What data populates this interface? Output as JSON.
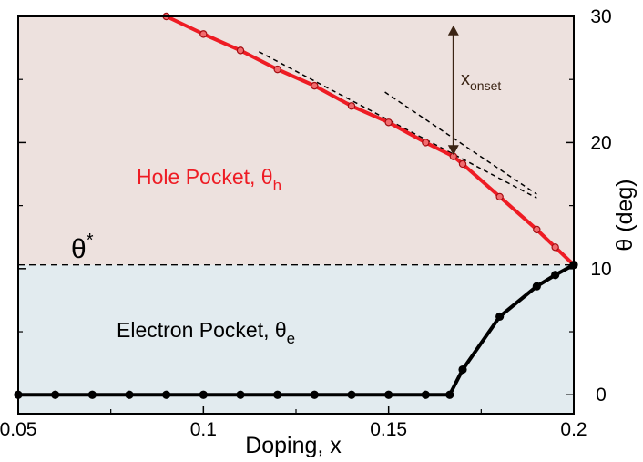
{
  "chart_data": {
    "type": "line",
    "xlabel": "Doping, x",
    "ylabel": "θ (deg)",
    "xlim": [
      0.05,
      0.2
    ],
    "ylim": [
      -1.5,
      30
    ],
    "x_ticks": [
      0.05,
      0.1,
      0.15,
      0.2
    ],
    "x_tick_labels": [
      "0.05",
      "0.1",
      "0.15",
      "0.2"
    ],
    "y_ticks": [
      0,
      10,
      20,
      30
    ],
    "y_tick_labels": [
      "0",
      "10",
      "20",
      "30"
    ],
    "y_axis_side": "right",
    "grid": false,
    "series": [
      {
        "id": "hole",
        "color": "#ee1c24",
        "points": [
          [
            0.09,
            30.0
          ],
          [
            0.1,
            28.6
          ],
          [
            0.11,
            27.3
          ],
          [
            0.12,
            25.8
          ],
          [
            0.13,
            24.5
          ],
          [
            0.14,
            22.9
          ],
          [
            0.15,
            21.6
          ],
          [
            0.16,
            20.0
          ],
          [
            0.1675,
            18.9
          ],
          [
            0.17,
            18.3
          ],
          [
            0.18,
            15.7
          ],
          [
            0.19,
            13.1
          ],
          [
            0.195,
            11.7
          ],
          [
            0.2,
            10.3
          ]
        ]
      },
      {
        "id": "electron",
        "color": "#000000",
        "points": [
          [
            0.05,
            0.0
          ],
          [
            0.06,
            0.0
          ],
          [
            0.07,
            0.0
          ],
          [
            0.08,
            0.0
          ],
          [
            0.09,
            0.0
          ],
          [
            0.1,
            0.0
          ],
          [
            0.11,
            0.0
          ],
          [
            0.12,
            0.0
          ],
          [
            0.13,
            0.0
          ],
          [
            0.14,
            0.0
          ],
          [
            0.15,
            0.0
          ],
          [
            0.16,
            0.0
          ],
          [
            0.1665,
            0.0
          ],
          [
            0.17,
            2.0
          ],
          [
            0.18,
            6.2
          ],
          [
            0.19,
            8.6
          ],
          [
            0.195,
            9.5
          ],
          [
            0.2,
            10.3
          ]
        ]
      }
    ],
    "theta_star": 10.3,
    "tangent_lines": [
      {
        "x": [
          0.115,
          0.19
        ],
        "y": [
          27.2,
          15.6
        ]
      },
      {
        "x": [
          0.149,
          0.19
        ],
        "y": [
          24.0,
          15.9
        ]
      }
    ],
    "onset_arrow": {
      "x": 0.1675,
      "y": [
        29.3,
        19.0
      ]
    },
    "annotations": {
      "hole_label": "Hole Pocket, θ",
      "hole_sub": "h",
      "electron_label": "Electron Pocket, θ",
      "electron_sub": "e",
      "theta_star_label": "θ",
      "theta_star_sup": "*",
      "onset_label": "x",
      "onset_sub": "onset"
    },
    "regions": {
      "hole_color": "#ede1de",
      "electron_color": "#e2ebef"
    }
  }
}
